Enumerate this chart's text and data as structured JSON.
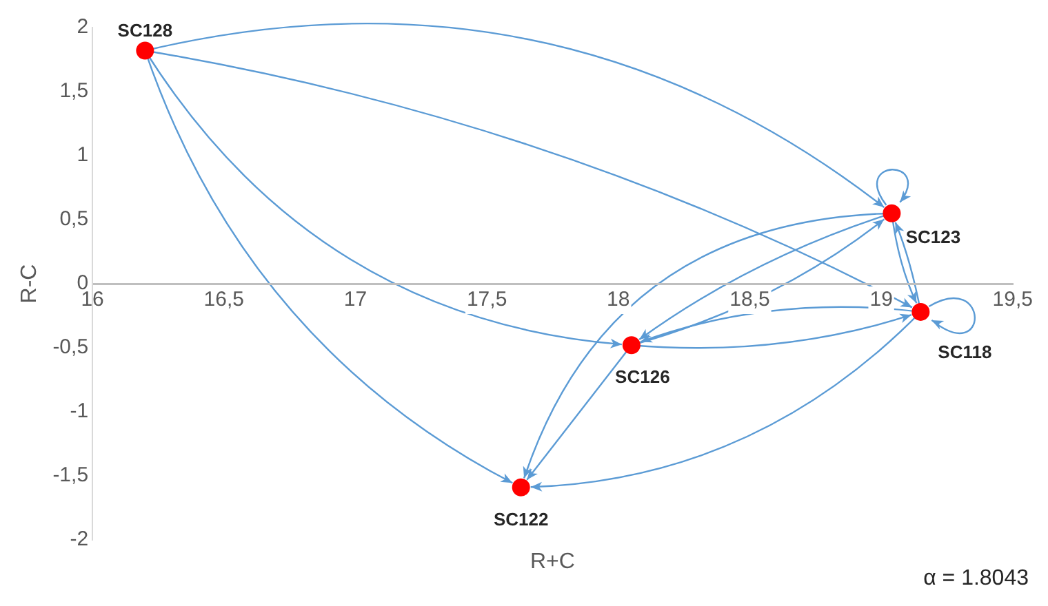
{
  "chart_data": {
    "type": "scatter",
    "xlabel": "R+C",
    "ylabel": "R-C",
    "x": [
      16.2,
      19.04,
      18.05,
      19.15,
      17.63
    ],
    "series": [
      {
        "color": "#ff0000",
        "values": [
          1.82,
          0.55,
          -0.48,
          -0.22,
          -1.59
        ]
      }
    ],
    "xlim": [
      16,
      19.5
    ],
    "xticks": [
      16,
      {
        "value": 16.5,
        "label": "16,5"
      },
      17,
      {
        "value": 17.5,
        "label": "17,5"
      },
      18,
      {
        "value": 18.5,
        "label": "18,5"
      },
      19,
      {
        "value": 19.5,
        "label": "19,5"
      }
    ],
    "ylim": [
      -2,
      2
    ],
    "yticks": [
      -2,
      {
        "value": -1.5,
        "label": "-1,5"
      },
      -1,
      {
        "value": -0.5,
        "label": "-0,5"
      },
      0,
      {
        "value": 0.5,
        "label": "0,5"
      },
      1,
      {
        "value": 1.5,
        "label": "1,5"
      },
      2
    ],
    "grid": false,
    "legend": false,
    "marker": "circle",
    "annotations": [
      {
        "text": "SC128",
        "x": 16.2,
        "y": 1.82
      },
      {
        "text": "SC123",
        "x": 19.04,
        "y": 0.55
      },
      {
        "text": "SC126",
        "x": 18.05,
        "y": -0.48
      },
      {
        "text": "SC118",
        "x": 19.15,
        "y": -0.22
      },
      {
        "text": "SC122",
        "x": 17.63,
        "y": -1.59
      },
      "α = 1.8043"
    ]
  }
}
